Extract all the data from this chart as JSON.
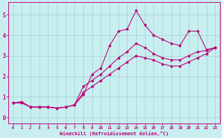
{
  "xlabel": "Windchill (Refroidissement éolien,°C)",
  "bg_color": "#c8eef0",
  "grid_color": "#9fcfcf",
  "line_color": "#bb0077",
  "xlim": [
    -0.5,
    23.5
  ],
  "ylim": [
    -0.3,
    5.6
  ],
  "xticks": [
    0,
    1,
    2,
    3,
    4,
    5,
    6,
    7,
    8,
    9,
    10,
    11,
    12,
    13,
    14,
    15,
    16,
    17,
    18,
    19,
    20,
    21,
    22,
    23
  ],
  "yticks": [
    0,
    1,
    2,
    3,
    4,
    5
  ],
  "series": [
    [
      0.7,
      0.7,
      0.5,
      0.5,
      0.5,
      0.45,
      0.5,
      0.6,
      1.1,
      2.1,
      2.4,
      3.5,
      4.2,
      4.3,
      5.2,
      4.5,
      4.0,
      3.8,
      3.6,
      3.5,
      4.2,
      4.2,
      3.3,
      3.4
    ],
    [
      0.7,
      0.75,
      0.5,
      0.5,
      0.5,
      0.45,
      0.5,
      0.6,
      1.5,
      1.8,
      2.1,
      2.5,
      2.9,
      3.2,
      3.6,
      3.4,
      3.1,
      2.9,
      2.8,
      2.8,
      3.0,
      3.2,
      3.25,
      3.4
    ],
    [
      0.7,
      0.75,
      0.5,
      0.5,
      0.5,
      0.45,
      0.5,
      0.6,
      1.2,
      1.5,
      1.8,
      2.1,
      2.4,
      2.7,
      3.0,
      2.9,
      2.8,
      2.6,
      2.5,
      2.5,
      2.7,
      2.9,
      3.1,
      3.4
    ]
  ]
}
